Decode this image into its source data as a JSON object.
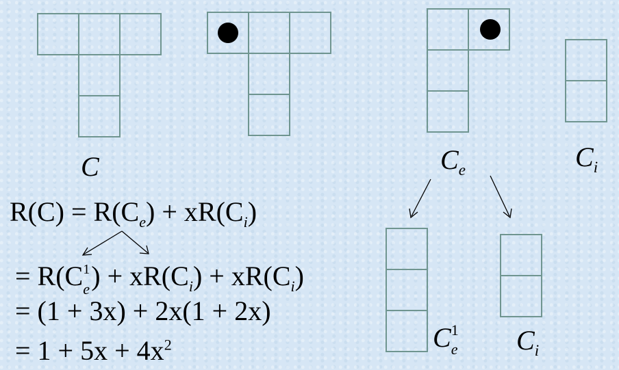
{
  "labels": {
    "C": "C",
    "Ce_base": "C",
    "Ce_sub": "e",
    "Ci_base": "C",
    "Ci_sub": "i",
    "Ce1_base": "C",
    "Ce1_sup": "1",
    "Ce1_sub": "e",
    "Ci2_base": "C",
    "Ci2_sub": "i"
  },
  "equations": {
    "line1": {
      "a": "R(C) = R(C",
      "a_sub": "e",
      "b": ") + xR(C",
      "b_sub": "i",
      "c": ")"
    },
    "line2": {
      "a": "= R(C",
      "a_sup": "1",
      "a_sub": "e",
      "b": ") + xR(C",
      "b_sub": "i",
      "c": ") + xR(C",
      "c_sub": "i",
      "d": ")"
    },
    "line3": "= (1 + 3x) + 2x(1 + 2x)",
    "line4": {
      "a": "= 1 + 5x + 4x",
      "a_sup": "2"
    }
  },
  "colors": {
    "cell_stroke": "#6f9590",
    "background": "#d6e6f5"
  }
}
